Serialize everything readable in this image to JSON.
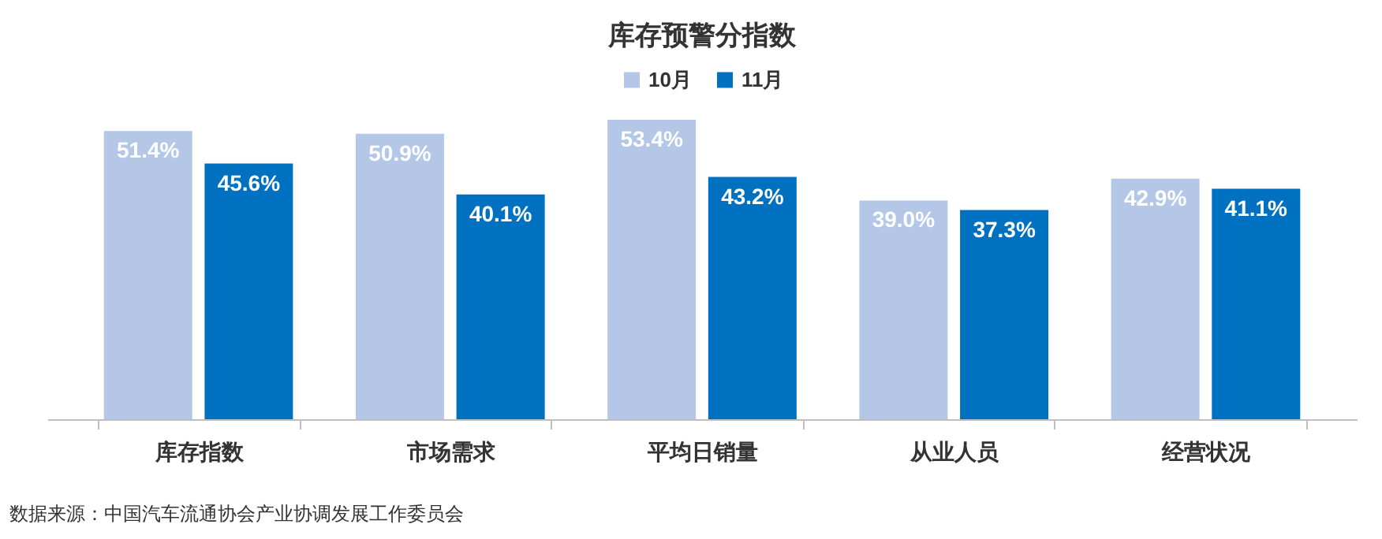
{
  "chart_data": {
    "type": "bar",
    "title": "库存预警分指数",
    "categories": [
      "库存指数",
      "市场需求",
      "平均日销量",
      "从业人员",
      "经营状况"
    ],
    "series": [
      {
        "name": "10月",
        "color": "#b4c7e7",
        "values": [
          51.4,
          50.9,
          53.4,
          39.0,
          42.9
        ],
        "value_labels": [
          "51.4%",
          "50.9%",
          "53.4%",
          "39.0%",
          "42.9%"
        ]
      },
      {
        "name": "11月",
        "color": "#0070c0",
        "values": [
          45.6,
          40.1,
          43.2,
          37.3,
          41.1
        ],
        "value_labels": [
          "45.6%",
          "40.1%",
          "43.2%",
          "37.3%",
          "41.1%"
        ]
      }
    ],
    "tick_labels": "x",
    "legend": "top",
    "annotations": [
      "数据来源：中国汽车流通协会产业协调发展工作委员会"
    ]
  }
}
